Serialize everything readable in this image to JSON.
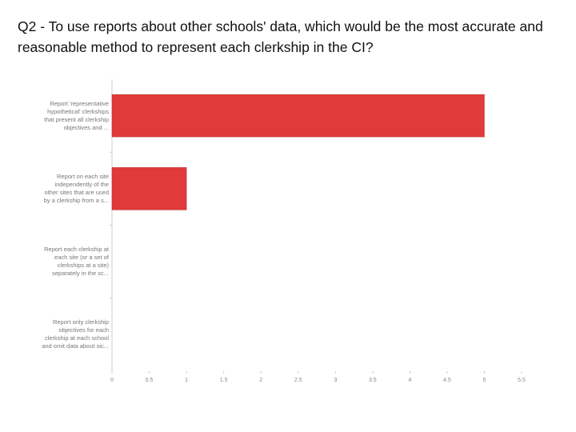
{
  "chart_data": {
    "type": "hbar",
    "title": "Q2 - To use reports about other schools' data, which would be the most accurate and reasonable method to represent each clerkship in the CI?",
    "categories": [
      "Report 'representative hypothetical' clerkships that present all clerkship objectives and ...",
      "Report on each site independently of the other sites that are used by a clerkship from a s...",
      "Report each clerkship at each site (or a set of clerkships at a site) separately in the sc...",
      "Report only clerkship objectives for each clerkship at each school and omit data about sic..."
    ],
    "values": [
      5,
      1,
      0,
      0
    ],
    "color": "#e03a3a",
    "xlim": [
      0,
      5.5
    ],
    "xticks": [
      0,
      0.5,
      1,
      1.5,
      2,
      2.5,
      3,
      3.5,
      4,
      4.5,
      5,
      5.5
    ]
  }
}
